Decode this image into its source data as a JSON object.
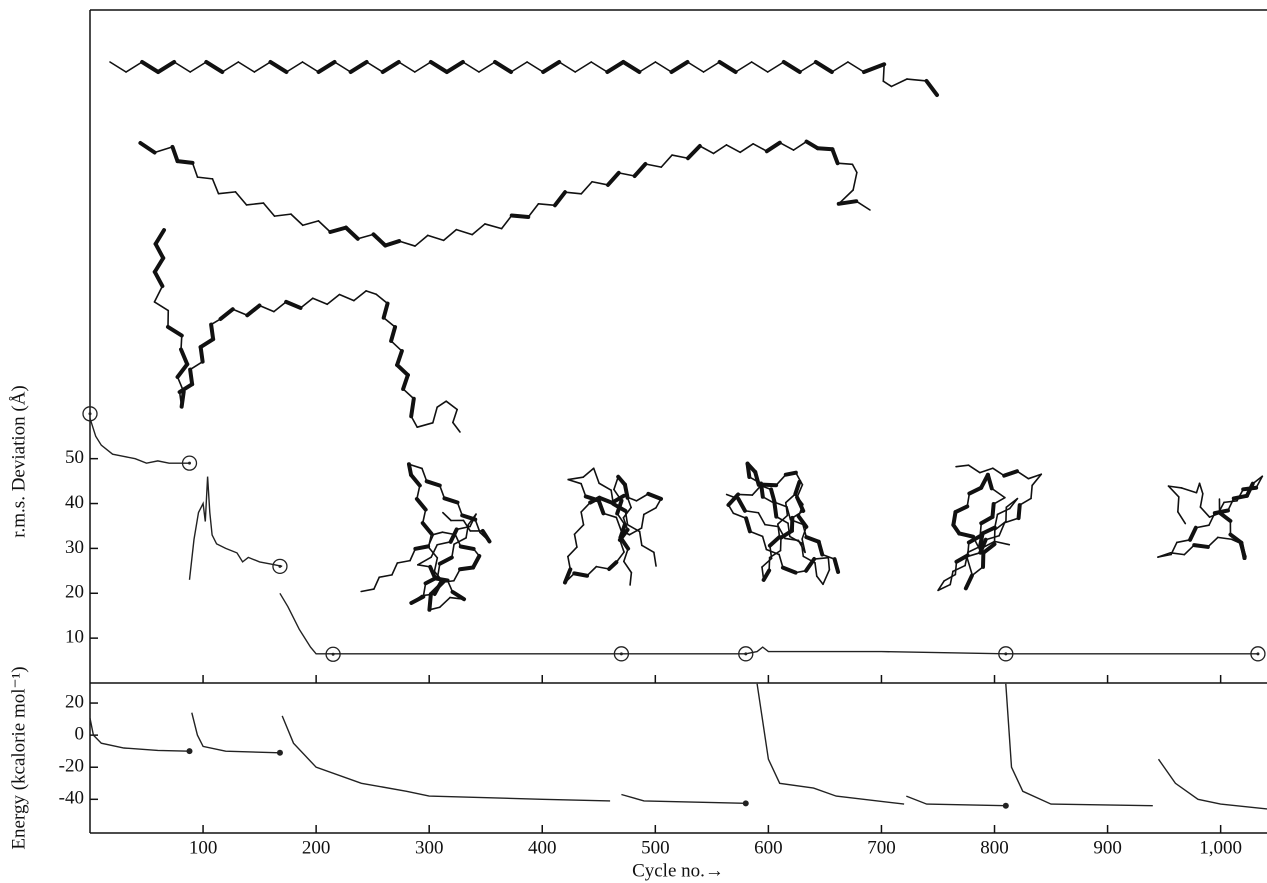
{
  "chart_data": [
    {
      "type": "line",
      "ylabel": "r.m.s. Deviation (Å)",
      "xlim": [
        0,
        1041
      ],
      "ylim": [
        0,
        150
      ],
      "yticks": [
        10,
        20,
        30,
        40,
        50
      ],
      "series": [
        {
          "color": "#222",
          "x": [
            0,
            5,
            10,
            20,
            30,
            40,
            50,
            60,
            70,
            88
          ],
          "values": [
            59,
            55,
            53,
            51,
            50.5,
            50,
            49,
            49.5,
            49,
            49
          ]
        },
        {
          "color": "#222",
          "x": [
            88,
            92,
            96,
            100,
            102,
            104,
            106,
            108,
            112,
            120,
            130,
            135,
            140,
            150,
            160,
            170
          ],
          "values": [
            23,
            32,
            38,
            40,
            36,
            46,
            38,
            33,
            31,
            30,
            29,
            27,
            28,
            27,
            26.5,
            26
          ]
        },
        {
          "color": "#222",
          "x": [
            168,
            175,
            185,
            195,
            200,
            215,
            300,
            400,
            470,
            520,
            580,
            590,
            595,
            600,
            700,
            810,
            900,
            1000,
            1033
          ],
          "values": [
            20,
            17,
            12,
            8,
            6.5,
            6.5,
            6.5,
            6.5,
            6.5,
            6.5,
            6.5,
            7,
            8,
            7,
            7,
            6.5,
            6.5,
            6.5,
            6.5
          ]
        },
        {
          "color": "#222",
          "marker": "circle",
          "line": false,
          "x": [
            0,
            88,
            168,
            215,
            470,
            580,
            810,
            1033
          ],
          "values": [
            60,
            49,
            26,
            6.4,
            6.5,
            6.5,
            6.5,
            6.5
          ]
        }
      ]
    },
    {
      "type": "line",
      "ylabel": "Energy (kcalorie mol⁻¹)",
      "xlabel": "Cycle no.→",
      "xlim": [
        0,
        1041
      ],
      "ylim": [
        -61,
        32.5
      ],
      "yticks": [
        20,
        0,
        -20,
        -40
      ],
      "xticks": [
        100,
        200,
        300,
        400,
        500,
        600,
        700,
        800,
        900,
        {
          "value": 1000,
          "label": "1,000"
        }
      ],
      "series": [
        {
          "color": "#222",
          "x": [
            0,
            3,
            10,
            30,
            60,
            88
          ],
          "values": [
            10.6,
            0,
            -5,
            -8,
            -9.5,
            -10
          ]
        },
        {
          "color": "#222",
          "x": [
            90,
            95,
            100,
            120,
            168
          ],
          "values": [
            14,
            0,
            -7,
            -10,
            -11
          ]
        },
        {
          "color": "#222",
          "x": [
            170,
            180,
            200,
            240,
            280,
            300,
            400,
            460
          ],
          "values": [
            12,
            -5,
            -20,
            -30,
            -35,
            -38,
            -40,
            -41
          ]
        },
        {
          "color": "#222",
          "x": [
            470,
            490,
            580
          ],
          "values": [
            -37,
            -41,
            -42.5
          ]
        },
        {
          "color": "#222",
          "x": [
            590,
            600,
            610,
            640,
            660,
            720
          ],
          "values": [
            32,
            -15,
            -30,
            -33,
            -38,
            -43
          ]
        },
        {
          "color": "#222",
          "x": [
            722,
            740,
            810
          ],
          "values": [
            -38,
            -43,
            -44
          ]
        },
        {
          "color": "#222",
          "x": [
            810,
            815,
            825,
            850,
            940
          ],
          "values": [
            32,
            -20,
            -35,
            -43,
            -44
          ]
        },
        {
          "color": "#222",
          "x": [
            945,
            960,
            980,
            1000,
            1041
          ],
          "values": [
            -15,
            -30,
            -40,
            -43,
            -46
          ]
        },
        {
          "color": "#222",
          "marker": "dot",
          "line": false,
          "x": [
            88,
            168,
            580,
            810
          ],
          "values": [
            -10,
            -11,
            -42.5,
            -44
          ]
        }
      ]
    }
  ]
}
